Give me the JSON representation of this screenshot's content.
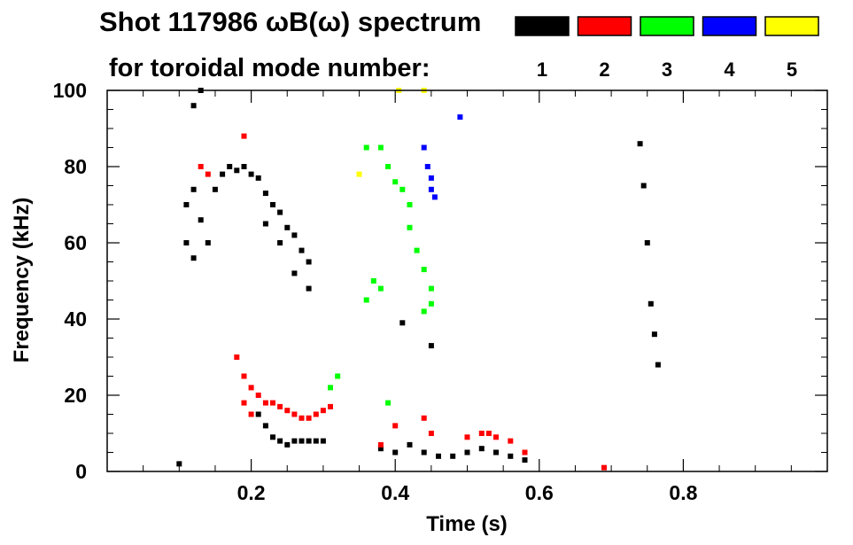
{
  "chart_data": {
    "type": "heatmap",
    "title": "Shot 117986 ωB(ω) spectrum",
    "subtitle": "for toroidal mode number:",
    "xlabel": "Time (s)",
    "ylabel": "Frequency (kHz)",
    "xlim": [
      0.0,
      1.0
    ],
    "ylim": [
      0,
      100
    ],
    "xticks": [
      0.2,
      0.4,
      0.6,
      0.8
    ],
    "xtick_labels": [
      "0.2",
      "0.4",
      "0.6",
      "0.8"
    ],
    "yticks": [
      0,
      20,
      40,
      60,
      80,
      100
    ],
    "ytick_labels": [
      "0",
      "20",
      "40",
      "60",
      "80",
      "100"
    ],
    "legend_position": "top-right",
    "legend": [
      {
        "label": "1",
        "color": "#000000"
      },
      {
        "label": "2",
        "color": "#ff0000"
      },
      {
        "label": "3",
        "color": "#00ff00"
      },
      {
        "label": "4",
        "color": "#0000ff"
      },
      {
        "label": "5",
        "color": "#ffff00"
      }
    ],
    "series": [
      {
        "name": "1",
        "color": "#000000",
        "points": [
          [
            0.11,
            70
          ],
          [
            0.12,
            74
          ],
          [
            0.13,
            66
          ],
          [
            0.14,
            60
          ],
          [
            0.15,
            74
          ],
          [
            0.16,
            78
          ],
          [
            0.17,
            80
          ],
          [
            0.18,
            79
          ],
          [
            0.19,
            80
          ],
          [
            0.2,
            78
          ],
          [
            0.21,
            77
          ],
          [
            0.22,
            73
          ],
          [
            0.23,
            70
          ],
          [
            0.24,
            68
          ],
          [
            0.25,
            64
          ],
          [
            0.26,
            62
          ],
          [
            0.27,
            58
          ],
          [
            0.28,
            55
          ],
          [
            0.11,
            60
          ],
          [
            0.12,
            56
          ],
          [
            0.22,
            65
          ],
          [
            0.24,
            60
          ],
          [
            0.26,
            52
          ],
          [
            0.28,
            48
          ],
          [
            0.13,
            100
          ],
          [
            0.12,
            96
          ],
          [
            0.21,
            15
          ],
          [
            0.22,
            12
          ],
          [
            0.23,
            9
          ],
          [
            0.24,
            8
          ],
          [
            0.25,
            7
          ],
          [
            0.26,
            8
          ],
          [
            0.27,
            8
          ],
          [
            0.28,
            8
          ],
          [
            0.29,
            8
          ],
          [
            0.3,
            8
          ],
          [
            0.38,
            6
          ],
          [
            0.4,
            5
          ],
          [
            0.42,
            7
          ],
          [
            0.44,
            5
          ],
          [
            0.46,
            4
          ],
          [
            0.48,
            4
          ],
          [
            0.5,
            5
          ],
          [
            0.52,
            6
          ],
          [
            0.54,
            5
          ],
          [
            0.56,
            4
          ],
          [
            0.58,
            3
          ],
          [
            0.45,
            33
          ],
          [
            0.41,
            39
          ],
          [
            0.74,
            86
          ],
          [
            0.745,
            75
          ],
          [
            0.75,
            60
          ],
          [
            0.755,
            44
          ],
          [
            0.76,
            36
          ],
          [
            0.765,
            28
          ],
          [
            0.1,
            2
          ]
        ]
      },
      {
        "name": "2",
        "color": "#ff0000",
        "points": [
          [
            0.13,
            80
          ],
          [
            0.14,
            78
          ],
          [
            0.19,
            88
          ],
          [
            0.18,
            30
          ],
          [
            0.19,
            25
          ],
          [
            0.2,
            22
          ],
          [
            0.21,
            20
          ],
          [
            0.22,
            18
          ],
          [
            0.23,
            18
          ],
          [
            0.24,
            17
          ],
          [
            0.25,
            16
          ],
          [
            0.26,
            15
          ],
          [
            0.27,
            14
          ],
          [
            0.28,
            14
          ],
          [
            0.29,
            15
          ],
          [
            0.3,
            16
          ],
          [
            0.31,
            17
          ],
          [
            0.19,
            18
          ],
          [
            0.2,
            15
          ],
          [
            0.4,
            12
          ],
          [
            0.44,
            14
          ],
          [
            0.45,
            10
          ],
          [
            0.5,
            9
          ],
          [
            0.52,
            10
          ],
          [
            0.53,
            10
          ],
          [
            0.54,
            9
          ],
          [
            0.38,
            7
          ],
          [
            0.56,
            8
          ],
          [
            0.58,
            5
          ],
          [
            0.69,
            1
          ]
        ]
      },
      {
        "name": "3",
        "color": "#00ff00",
        "points": [
          [
            0.38,
            85
          ],
          [
            0.39,
            80
          ],
          [
            0.4,
            76
          ],
          [
            0.41,
            74
          ],
          [
            0.42,
            70
          ],
          [
            0.42,
            64
          ],
          [
            0.43,
            58
          ],
          [
            0.44,
            53
          ],
          [
            0.45,
            48
          ],
          [
            0.45,
            44
          ],
          [
            0.44,
            42
          ],
          [
            0.36,
            85
          ],
          [
            0.39,
            18
          ],
          [
            0.31,
            22
          ],
          [
            0.32,
            25
          ],
          [
            0.36,
            45
          ],
          [
            0.38,
            48
          ],
          [
            0.37,
            50
          ]
        ]
      },
      {
        "name": "4",
        "color": "#0000ff",
        "points": [
          [
            0.44,
            85
          ],
          [
            0.445,
            80
          ],
          [
            0.45,
            77
          ],
          [
            0.45,
            74
          ],
          [
            0.455,
            72
          ],
          [
            0.49,
            93
          ]
        ]
      },
      {
        "name": "5",
        "color": "#ffff00",
        "points": [
          [
            0.35,
            78
          ],
          [
            0.405,
            100
          ],
          [
            0.44,
            100
          ]
        ]
      }
    ]
  }
}
